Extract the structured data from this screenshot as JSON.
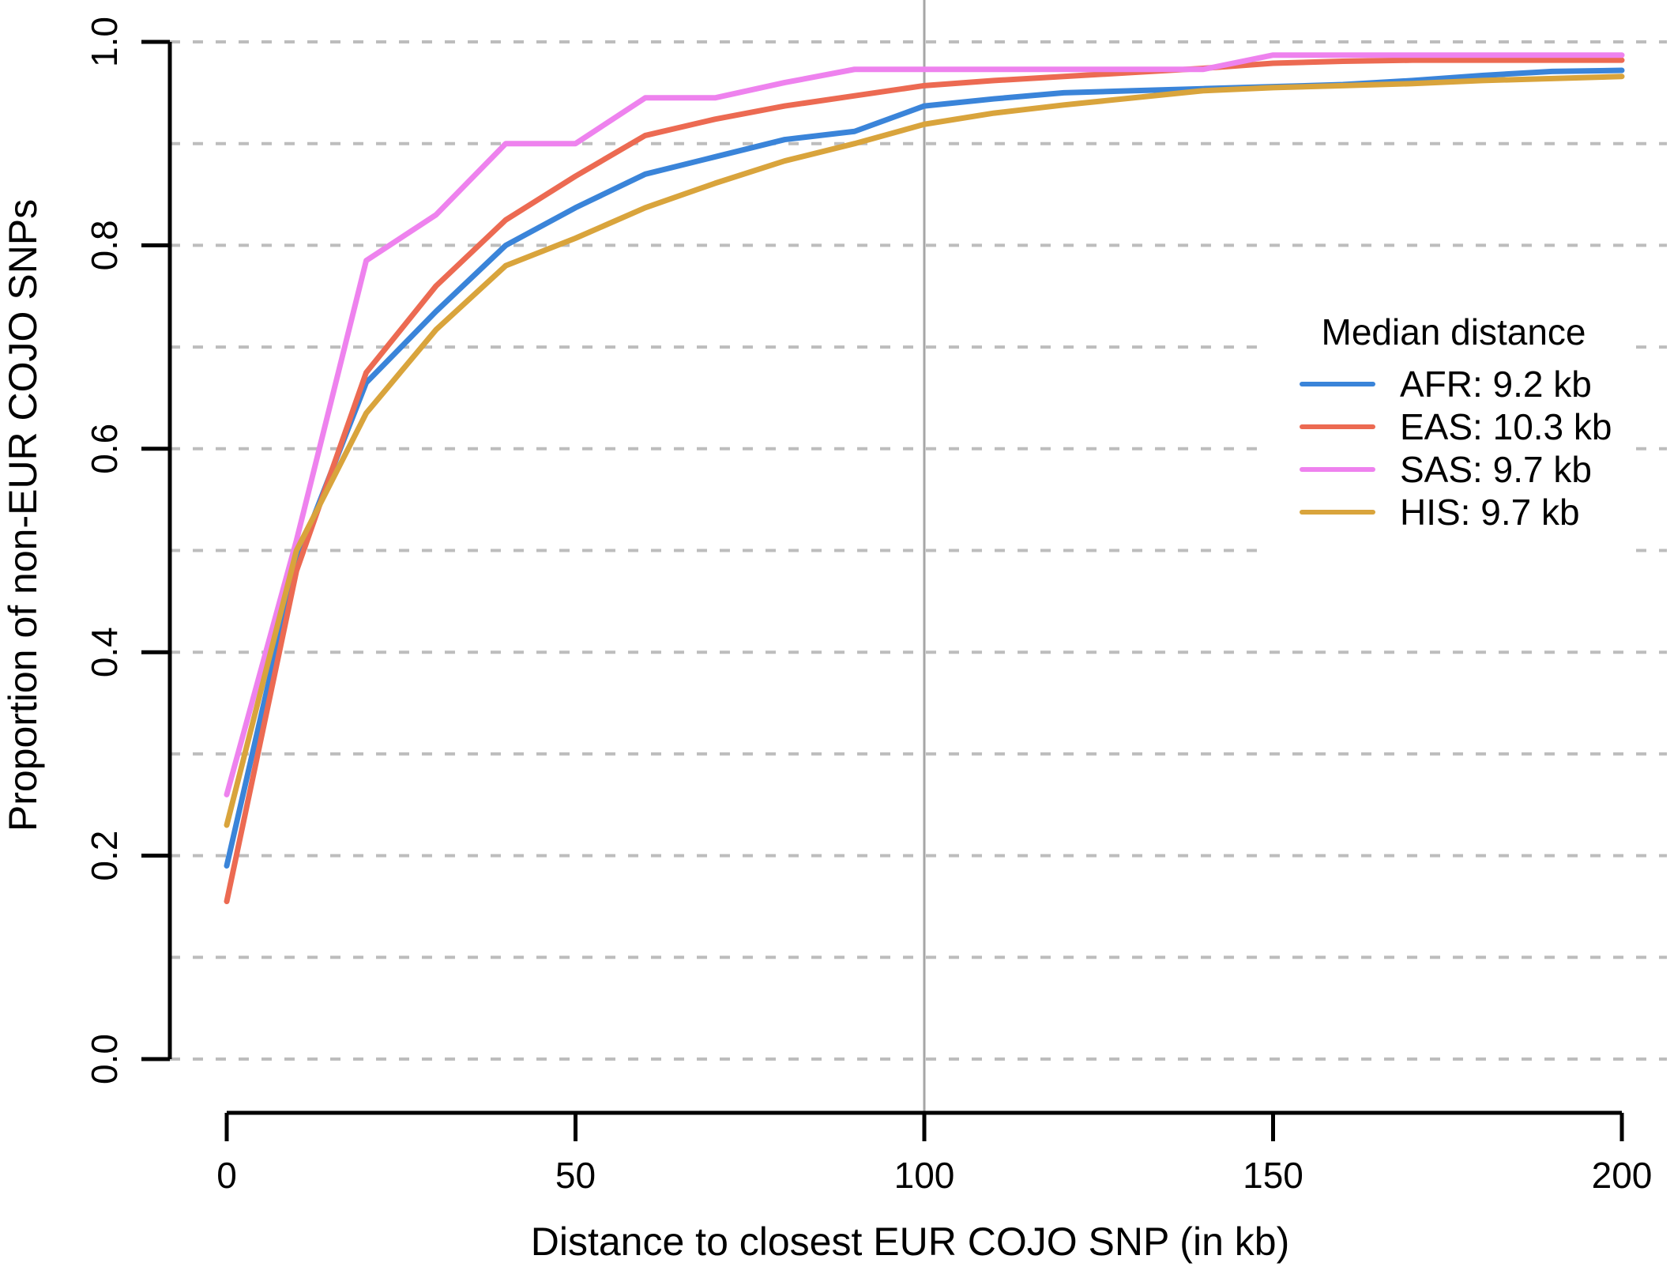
{
  "figure": {
    "background": "#ffffff",
    "text_color": "#000000",
    "grid_color": "#bdbdbd",
    "axis_color": "#000000",
    "reference_line_color": "#a6a6a6"
  },
  "chart_data": {
    "type": "line",
    "title": "",
    "xlabel": "Distance to closest EUR COJO SNP (in kb)",
    "ylabel": "Proportion of non-EUR COJO SNPs",
    "xlim": [
      -8,
      208
    ],
    "ylim": [
      -0.053,
      1.0
    ],
    "x_ticks": [
      0,
      50,
      100,
      150,
      200
    ],
    "x_tick_labels": [
      "0",
      "50",
      "100",
      "150",
      "200"
    ],
    "y_ticks": [
      0.0,
      0.2,
      0.4,
      0.6,
      0.8,
      1.0
    ],
    "y_tick_labels": [
      "0.0",
      "0.2",
      "0.4",
      "0.6",
      "0.8",
      "1.0"
    ],
    "grid": {
      "axis": "y",
      "from": 0.0,
      "to": 1.0,
      "step": 0.1,
      "style": "dashed",
      "color": "#bdbdbd"
    },
    "reference_line": {
      "orientation": "vertical",
      "x": 100,
      "color": "#a6a6a6"
    },
    "x": [
      0,
      10,
      20,
      30,
      40,
      50,
      60,
      70,
      80,
      90,
      100,
      110,
      120,
      130,
      140,
      150,
      160,
      170,
      180,
      190,
      200
    ],
    "series": [
      {
        "name": "AFR",
        "legend_label": "AFR: 9.2 kb",
        "median_distance_kb": 9.2,
        "color": "#3a84d9",
        "values": [
          0.19,
          0.49,
          0.665,
          0.735,
          0.8,
          0.837,
          0.87,
          0.887,
          0.904,
          0.912,
          0.937,
          0.944,
          0.95,
          0.952,
          0.954,
          0.956,
          0.958,
          0.962,
          0.967,
          0.971,
          0.972
        ]
      },
      {
        "name": "EAS",
        "legend_label": "EAS: 10.3 kb",
        "median_distance_kb": 10.3,
        "color": "#ec6a52",
        "values": [
          0.155,
          0.48,
          0.675,
          0.76,
          0.825,
          0.868,
          0.908,
          0.924,
          0.937,
          0.947,
          0.957,
          0.962,
          0.966,
          0.97,
          0.974,
          0.979,
          0.981,
          0.982,
          0.982,
          0.982,
          0.982
        ]
      },
      {
        "name": "SAS",
        "legend_label": "SAS: 9.7 kb",
        "median_distance_kb": 9.7,
        "color": "#ee82ee",
        "values": [
          0.26,
          0.51,
          0.785,
          0.83,
          0.9,
          0.9,
          0.945,
          0.945,
          0.96,
          0.973,
          0.973,
          0.973,
          0.973,
          0.973,
          0.973,
          0.987,
          0.987,
          0.987,
          0.987,
          0.987,
          0.987
        ]
      },
      {
        "name": "HIS",
        "legend_label": "HIS: 9.7 kb",
        "median_distance_kb": 9.7,
        "color": "#d9a43c",
        "values": [
          0.23,
          0.5,
          0.635,
          0.717,
          0.78,
          0.807,
          0.837,
          0.861,
          0.883,
          0.9,
          0.919,
          0.93,
          0.938,
          0.945,
          0.952,
          0.955,
          0.957,
          0.959,
          0.962,
          0.964,
          0.966
        ]
      }
    ],
    "legend": {
      "title": "Median distance",
      "position": "right-middle",
      "background": "#ffffff"
    }
  }
}
